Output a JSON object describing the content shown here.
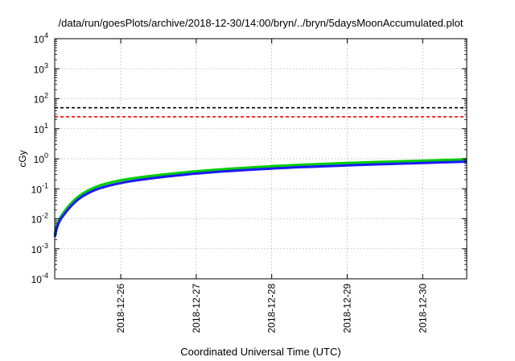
{
  "chart_data": {
    "type": "line",
    "title": "/data/run/goesPlots/archive/2018-12-30/14:00/bryn/../bryn/5daysMoonAccumulated.plot",
    "xlabel": "Coordinated Universal Time (UTC)",
    "ylabel": "cGy",
    "yscale": "log",
    "ylim": [
      0.0001,
      10000
    ],
    "xlim": [
      "2018-12-25 03:00",
      "2018-12-30 14:00"
    ],
    "y_ticks": [
      {
        "mantissa": "10",
        "exp": "-4",
        "value": 0.0001
      },
      {
        "mantissa": "10",
        "exp": "-3",
        "value": 0.001
      },
      {
        "mantissa": "10",
        "exp": "-2",
        "value": 0.01
      },
      {
        "mantissa": "10",
        "exp": "-1",
        "value": 0.1
      },
      {
        "mantissa": "10",
        "exp": "0",
        "value": 1
      },
      {
        "mantissa": "10",
        "exp": "1",
        "value": 10
      },
      {
        "mantissa": "10",
        "exp": "2",
        "value": 100
      },
      {
        "mantissa": "10",
        "exp": "3",
        "value": 1000
      },
      {
        "mantissa": "10",
        "exp": "4",
        "value": 10000
      }
    ],
    "x_ticks": [
      "2018-12-26",
      "2018-12-27",
      "2018-12-28",
      "2018-12-29",
      "2018-12-30"
    ],
    "grid": true,
    "reference_lines": [
      {
        "value": 50,
        "color": "#000000",
        "style": "dashed"
      },
      {
        "value": 25,
        "color": "#ff0000",
        "style": "dashed"
      }
    ],
    "series": [
      {
        "color": "#00cc00",
        "x": [
          "2018-12-25 03:00",
          "2018-12-25 05:00",
          "2018-12-25 12:00",
          "2018-12-26 00:00",
          "2018-12-27 00:00",
          "2018-12-28 00:00",
          "2018-12-29 00:00",
          "2018-12-30 00:00",
          "2018-12-30 14:00"
        ],
        "y": [
          0.003,
          0.012,
          0.07,
          0.19,
          0.38,
          0.56,
          0.72,
          0.86,
          0.95
        ]
      },
      {
        "color": "#1a1aff",
        "x": [
          "2018-12-25 03:00",
          "2018-12-25 05:00",
          "2018-12-25 12:00",
          "2018-12-26 00:00",
          "2018-12-27 00:00",
          "2018-12-28 00:00",
          "2018-12-29 00:00",
          "2018-12-30 00:00",
          "2018-12-30 14:00"
        ],
        "y": [
          0.0025,
          0.01,
          0.057,
          0.155,
          0.32,
          0.47,
          0.6,
          0.72,
          0.8
        ]
      }
    ]
  }
}
